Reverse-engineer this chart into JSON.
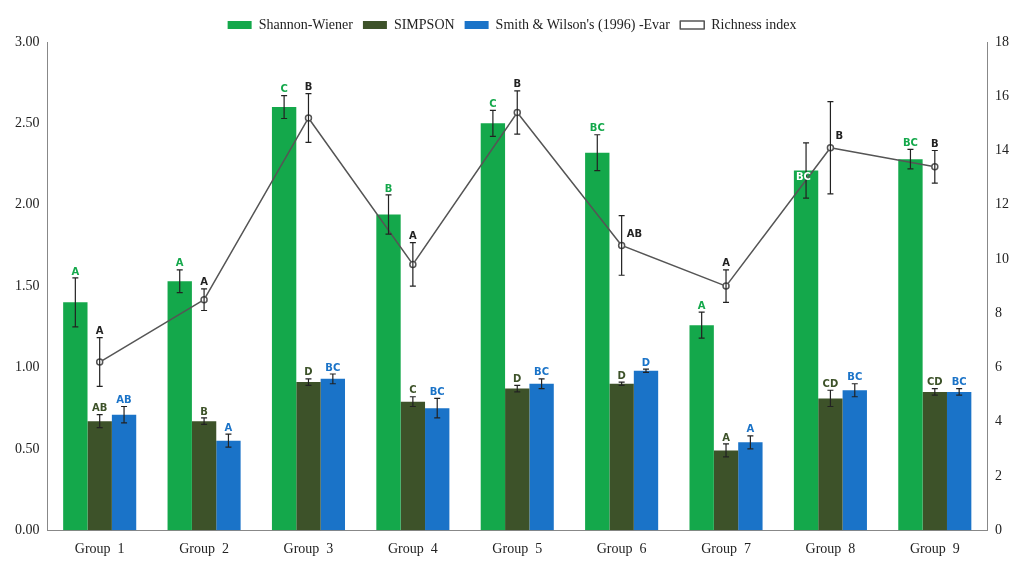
{
  "chart_data": {
    "type": "bar",
    "categories": [
      "Group  1",
      "Group  2",
      "Group  3",
      "Group  4",
      "Group  5",
      "Group  6",
      "Group  7",
      "Group  8",
      "Group  9"
    ],
    "series": [
      {
        "name": "Shannon-Wiener",
        "color": "#14a84b",
        "values": [
          1.4,
          1.53,
          2.6,
          1.94,
          2.5,
          2.32,
          1.26,
          2.21,
          2.28
        ],
        "errors": [
          0.15,
          0.07,
          0.07,
          0.12,
          0.08,
          0.11,
          0.08,
          0.17,
          0.06
        ],
        "value_labels": [
          "A",
          "A",
          "C",
          "B",
          "C",
          "BC",
          "A",
          "BC",
          "BC"
        ]
      },
      {
        "name": "SIMPSON",
        "color": "#3d5229",
        "values": [
          0.67,
          0.67,
          0.91,
          0.79,
          0.87,
          0.9,
          0.49,
          0.81,
          0.85
        ],
        "errors": [
          0.04,
          0.02,
          0.02,
          0.03,
          0.02,
          0.01,
          0.04,
          0.05,
          0.02
        ],
        "value_labels": [
          "AB",
          "B",
          "D",
          "C",
          "D",
          "D",
          "A",
          "CD",
          "CD"
        ]
      },
      {
        "name": "Smith & Wilson's (1996) -Evar",
        "color": "#1a73c8",
        "values": [
          0.71,
          0.55,
          0.93,
          0.75,
          0.9,
          0.98,
          0.54,
          0.86,
          0.85
        ],
        "errors": [
          0.05,
          0.04,
          0.03,
          0.06,
          0.03,
          0.01,
          0.04,
          0.04,
          0.02
        ],
        "value_labels": [
          "AB",
          "A",
          "BC",
          "BC",
          "BC",
          "D",
          "A",
          "BC",
          "BC"
        ]
      },
      {
        "name": "Richness index",
        "type": "line",
        "axis": "y2",
        "color": "#555555",
        "values": [
          6.2,
          8.5,
          15.2,
          9.8,
          15.4,
          10.5,
          9.0,
          14.1,
          13.4
        ],
        "errors": [
          0.9,
          0.4,
          0.9,
          0.8,
          0.8,
          1.1,
          0.6,
          1.7,
          0.6
        ],
        "value_labels": [
          "A",
          "A",
          "B",
          "A",
          "B",
          "AB",
          "A",
          "B",
          "B"
        ]
      }
    ],
    "ylim": [
      0,
      3
    ],
    "yticks": [
      {
        "value": 0,
        "label": "0.00"
      },
      {
        "value": 0.5,
        "label": "0.50"
      },
      {
        "value": 1,
        "label": "1.00"
      },
      {
        "value": 1.5,
        "label": "1.50"
      },
      {
        "value": 2,
        "label": "2.00"
      },
      {
        "value": 2.5,
        "label": "2.50"
      },
      {
        "value": 3,
        "label": "3.00"
      }
    ],
    "y2lim": [
      0,
      18
    ],
    "y2ticks": [
      0,
      2,
      4,
      6,
      8,
      10,
      12,
      14,
      16,
      18
    ],
    "legend": "top",
    "marker": "circle",
    "grid": false
  }
}
